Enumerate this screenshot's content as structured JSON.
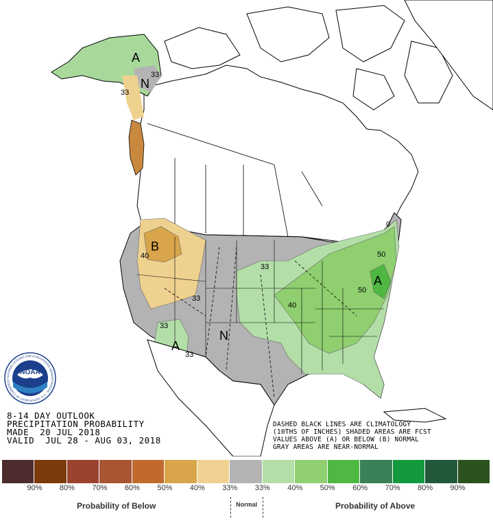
{
  "title": {
    "line1": "8-14 DAY OUTLOOK",
    "line2": "PRECIPITATION PROBABILITY",
    "line3": "MADE  20 JUL 2018",
    "line4": "VALID  JUL 28 - AUG 03, 2018"
  },
  "notes": {
    "line1": "DASHED BLACK LINES ARE CLIMATOLOGY",
    "line2": "(10THS OF INCHES) SHADED AREAS ARE FCST",
    "line3": "VALUES ABOVE (A) OR BELOW (B) NORMAL",
    "line4": "GRAY AREAS ARE NEAR-NORMAL"
  },
  "logo": {
    "text": "NOAA",
    "ring_text": "NATIONAL OCEANIC AND ATMOSPHERIC ADMINISTRATION · U.S. DEPARTMENT OF COMMERCE",
    "icon": "noaa-logo"
  },
  "map_labels": {
    "alaska_letter": "A",
    "alaska_n": "N",
    "alaska_33a": "33",
    "alaska_33b": "33",
    "nw_letter": "B",
    "nw_40": "40",
    "nw_33": "33",
    "sw_letter": "A",
    "sw_33a": "33",
    "sw_33b": "33",
    "plains_n": "N",
    "midwest_33": "33",
    "midwest_40": "40",
    "east_50a": "50",
    "east_50b": "50",
    "east_a": "A",
    "ne_0": "0"
  },
  "legend": {
    "colors": [
      "#4d2c2e",
      "#7b3b0a",
      "#9a4430",
      "#a85532",
      "#c06a2e",
      "#d8a54a",
      "#f0d191",
      "#b3b3b3",
      "#b3dea8",
      "#8fcf70",
      "#4fb843",
      "#3a8058",
      "#139a3e",
      "#21593a",
      "#2c5220"
    ],
    "ticks": [
      "90%",
      "80%",
      "70%",
      "60%",
      "50%",
      "40%",
      "33%",
      "33%",
      "40%",
      "50%",
      "60%",
      "70%",
      "80%",
      "90%"
    ],
    "below_label": "Probability of Below",
    "normal_label": "Normal",
    "above_label": "Probability of Above"
  }
}
